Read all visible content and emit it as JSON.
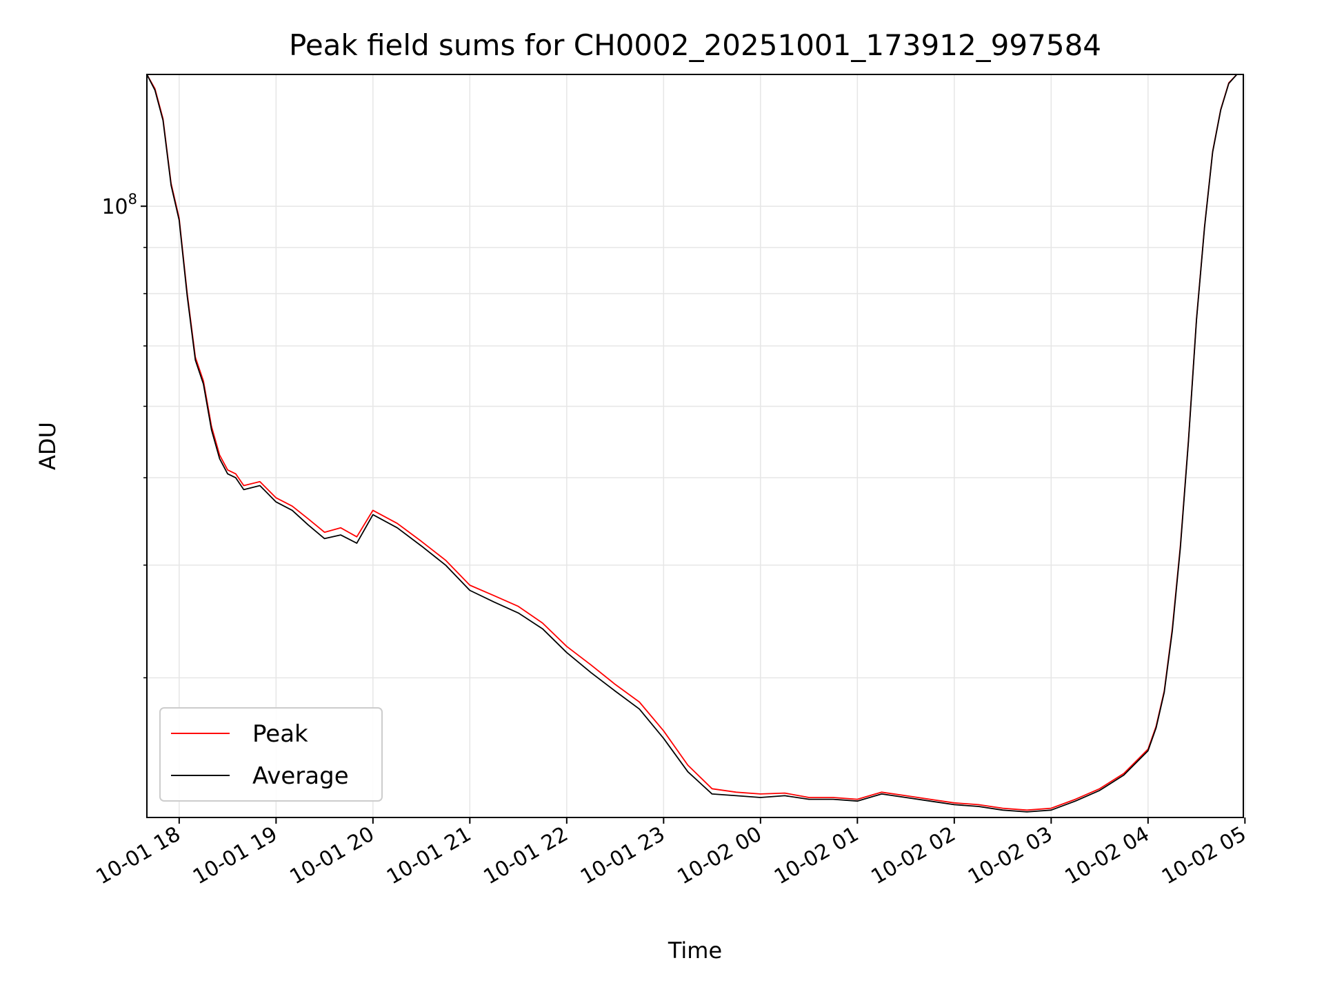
{
  "chart_data": {
    "type": "line",
    "title": "Peak field sums for CH0002_20251001_173912_997584",
    "xlabel": "Time",
    "ylabel": "ADU",
    "yscale": "log",
    "ylim": [
      21000000,
      140000000
    ],
    "xlim": [
      "10-01 17:40",
      "10-02 04:59"
    ],
    "x_ticks": [
      "10-01 18",
      "10-01 19",
      "10-01 20",
      "10-01 21",
      "10-01 22",
      "10-01 23",
      "10-02 00",
      "10-02 01",
      "10-02 02",
      "10-02 03",
      "10-02 04",
      "10-02 05"
    ],
    "y_major_ticks": [
      {
        "value": 100000000,
        "base": "10",
        "exponent": "8"
      }
    ],
    "y_minor_ticks": [
      30000000,
      40000000,
      50000000,
      60000000,
      70000000,
      80000000,
      90000000,
      200000000
    ],
    "grid": true,
    "legend_position": "lower-left",
    "x": [
      "10-01 17:40",
      "10-01 17:45",
      "10-01 17:50",
      "10-01 17:55",
      "10-01 18:00",
      "10-01 18:05",
      "10-01 18:10",
      "10-01 18:15",
      "10-01 18:20",
      "10-01 18:25",
      "10-01 18:30",
      "10-01 18:35",
      "10-01 18:40",
      "10-01 18:50",
      "10-01 19:00",
      "10-01 19:10",
      "10-01 19:20",
      "10-01 19:30",
      "10-01 19:40",
      "10-01 19:50",
      "10-01 20:00",
      "10-01 20:15",
      "10-01 20:30",
      "10-01 20:45",
      "10-01 21:00",
      "10-01 21:15",
      "10-01 21:30",
      "10-01 21:45",
      "10-01 22:00",
      "10-01 22:15",
      "10-01 22:30",
      "10-01 22:45",
      "10-01 23:00",
      "10-01 23:15",
      "10-01 23:30",
      "10-01 23:45",
      "10-02 00:00",
      "10-02 00:15",
      "10-02 00:30",
      "10-02 00:45",
      "10-02 01:00",
      "10-02 01:15",
      "10-02 01:30",
      "10-02 01:45",
      "10-02 02:00",
      "10-02 02:15",
      "10-02 02:30",
      "10-02 02:45",
      "10-02 03:00",
      "10-02 03:15",
      "10-02 03:30",
      "10-02 03:45",
      "10-02 04:00",
      "10-02 04:05",
      "10-02 04:10",
      "10-02 04:15",
      "10-02 04:20",
      "10-02 04:25",
      "10-02 04:30",
      "10-02 04:35",
      "10-02 04:40",
      "10-02 04:45",
      "10-02 04:50",
      "10-02 04:55",
      "10-02 04:59"
    ],
    "series": [
      {
        "name": "Peak",
        "color": "#ff0000",
        "values": [
          140000000,
          135000000,
          125000000,
          106000000,
          97000000,
          80000000,
          68000000,
          64000000,
          57000000,
          53000000,
          51000000,
          50500000,
          49000000,
          49500000,
          47500000,
          46500000,
          45000000,
          43500000,
          44000000,
          43000000,
          46000000,
          44500000,
          42500000,
          40500000,
          38000000,
          37000000,
          36000000,
          34500000,
          32500000,
          31000000,
          29500000,
          28200000,
          26200000,
          24000000,
          22600000,
          22400000,
          22300000,
          22350000,
          22100000,
          22100000,
          22000000,
          22400000,
          22200000,
          22000000,
          21800000,
          21700000,
          21500000,
          21400000,
          21500000,
          22000000,
          22600000,
          23500000,
          25000000,
          26500000,
          29000000,
          34000000,
          42000000,
          55000000,
          75000000,
          95000000,
          115000000,
          128000000,
          137000000,
          140000000,
          140000000
        ]
      },
      {
        "name": "Average",
        "color": "#000000",
        "values": [
          140000000,
          134500000,
          124500000,
          105500000,
          96500000,
          79500000,
          67500000,
          63500000,
          56500000,
          52500000,
          50500000,
          50000000,
          48500000,
          49000000,
          47000000,
          46000000,
          44300000,
          42800000,
          43200000,
          42300000,
          45500000,
          44000000,
          42000000,
          40000000,
          37500000,
          36400000,
          35400000,
          34000000,
          32000000,
          30400000,
          29000000,
          27700000,
          25700000,
          23600000,
          22300000,
          22200000,
          22100000,
          22200000,
          22000000,
          22000000,
          21900000,
          22300000,
          22100000,
          21900000,
          21700000,
          21600000,
          21400000,
          21300000,
          21400000,
          21900000,
          22500000,
          23400000,
          24900000,
          26400000,
          28900000,
          33800000,
          41800000,
          54800000,
          74800000,
          94800000,
          114800000,
          127800000,
          136800000,
          140000000,
          140000000
        ]
      }
    ]
  }
}
